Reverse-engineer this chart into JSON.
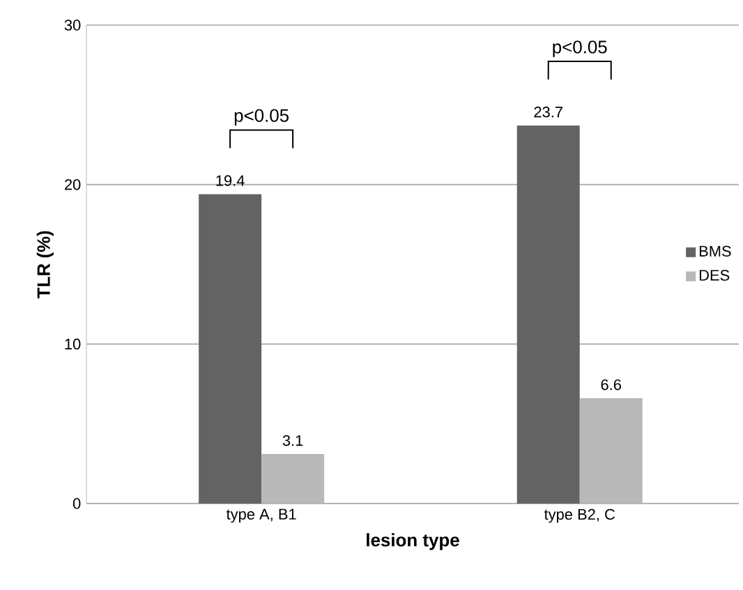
{
  "chart_data": {
    "type": "bar",
    "xlabel": "lesion type",
    "ylabel": "TLR (%)",
    "categories": [
      "type A, B1",
      "type B2, C"
    ],
    "series": [
      {
        "name": "BMS",
        "color": "#636363",
        "values": [
          19.4,
          23.7
        ]
      },
      {
        "name": "DES",
        "color": "#b8b8b8",
        "values": [
          3.1,
          6.6
        ]
      }
    ],
    "ylim": [
      0,
      30
    ],
    "yticks": [
      0,
      10,
      20,
      30
    ],
    "grid": "y",
    "legend": "right",
    "data_labels": true,
    "annotations": [
      "p<0.05",
      "p<0.05"
    ]
  }
}
